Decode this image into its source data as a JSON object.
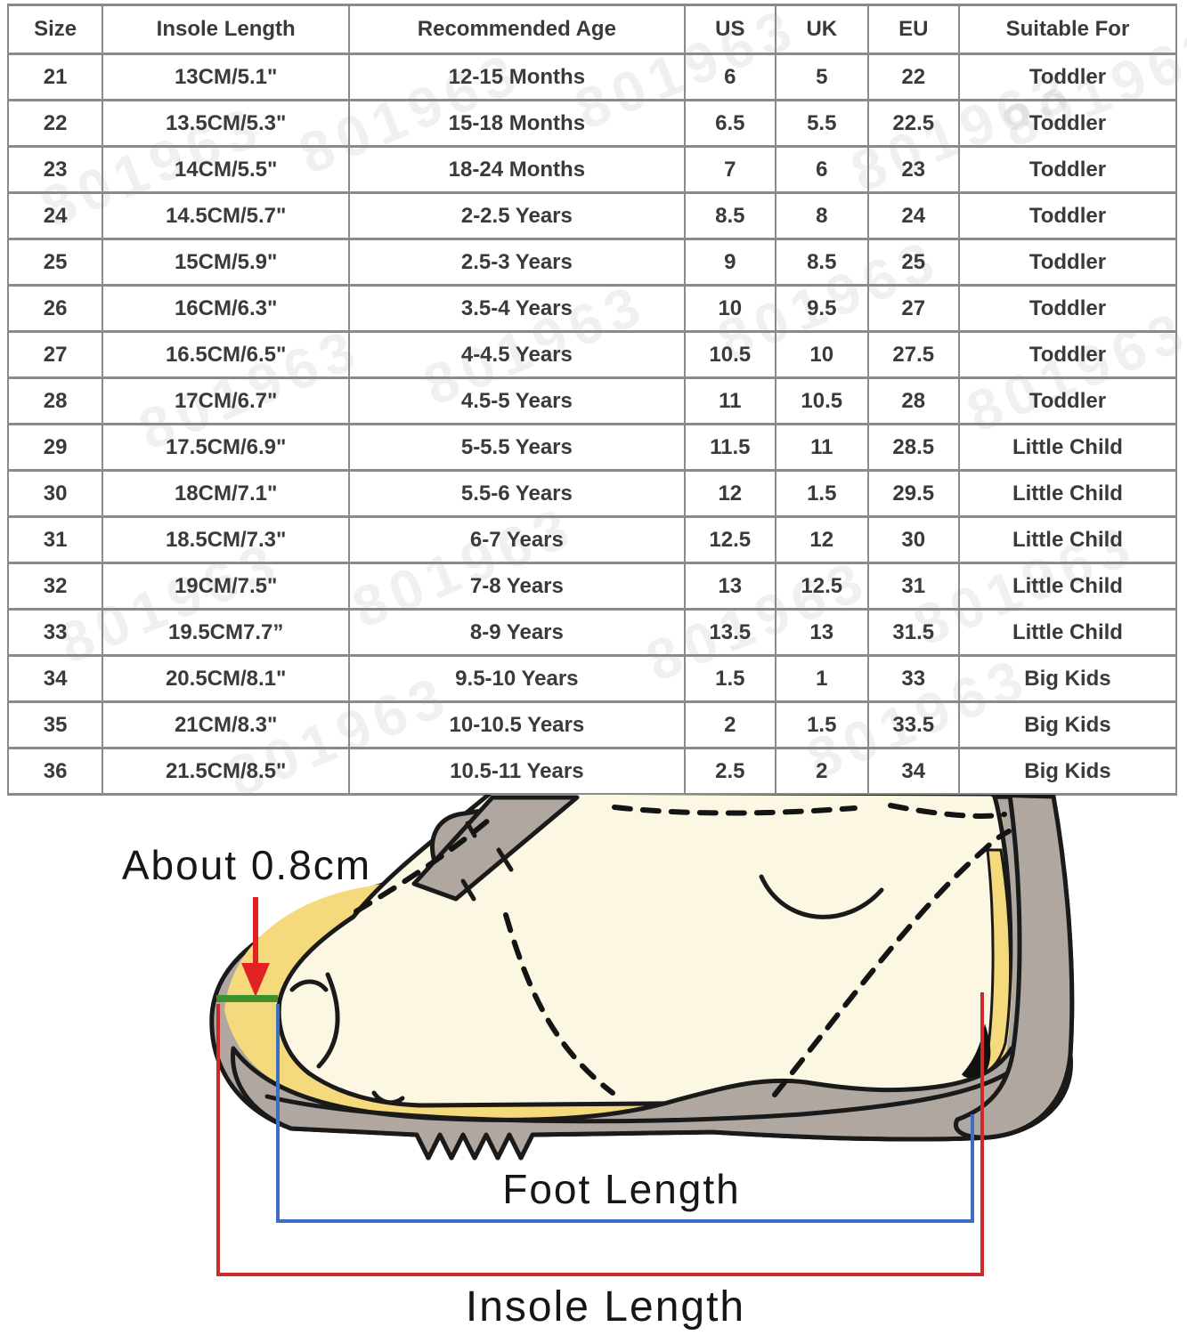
{
  "table": {
    "headers": [
      "Size",
      "Insole Length",
      "Recommended Age",
      "US",
      "UK",
      "EU",
      "Suitable For"
    ],
    "rows": [
      [
        "21",
        "13CM/5.1\"",
        "12-15 Months",
        "6",
        "5",
        "22",
        "Toddler"
      ],
      [
        "22",
        "13.5CM/5.3\"",
        "15-18 Months",
        "6.5",
        "5.5",
        "22.5",
        "Toddler"
      ],
      [
        "23",
        "14CM/5.5\"",
        "18-24 Months",
        "7",
        "6",
        "23",
        "Toddler"
      ],
      [
        "24",
        "14.5CM/5.7\"",
        "2-2.5 Years",
        "8.5",
        "8",
        "24",
        "Toddler"
      ],
      [
        "25",
        "15CM/5.9\"",
        "2.5-3 Years",
        "9",
        "8.5",
        "25",
        "Toddler"
      ],
      [
        "26",
        "16CM/6.3\"",
        "3.5-4 Years",
        "10",
        "9.5",
        "27",
        "Toddler"
      ],
      [
        "27",
        "16.5CM/6.5\"",
        "4-4.5 Years",
        "10.5",
        "10",
        "27.5",
        "Toddler"
      ],
      [
        "28",
        "17CM/6.7\"",
        "4.5-5 Years",
        "11",
        "10.5",
        "28",
        "Toddler"
      ],
      [
        "29",
        "17.5CM/6.9\"",
        "5-5.5 Years",
        "11.5",
        "11",
        "28.5",
        "Little Child"
      ],
      [
        "30",
        "18CM/7.1\"",
        "5.5-6 Years",
        "12",
        "1.5",
        "29.5",
        "Little Child"
      ],
      [
        "31",
        "18.5CM/7.3\"",
        "6-7 Years",
        "12.5",
        "12",
        "30",
        "Little Child"
      ],
      [
        "32",
        "19CM/7.5\"",
        "7-8 Years",
        "13",
        "12.5",
        "31",
        "Little Child"
      ],
      [
        "33",
        "19.5CM7.7”",
        "8-9 Years",
        "13.5",
        "13",
        "31.5",
        "Little Child"
      ],
      [
        "34",
        "20.5CM/8.1\"",
        "9.5-10 Years",
        "1.5",
        "1",
        "33",
        "Big Kids"
      ],
      [
        "35",
        "21CM/8.3\"",
        "10-10.5 Years",
        "2",
        "1.5",
        "33.5",
        "Big Kids"
      ],
      [
        "36",
        "21.5CM/8.5\"",
        "10.5-11 Years",
        "2.5",
        "2",
        "34",
        "Big Kids"
      ]
    ]
  },
  "watermark": {
    "text": "801963"
  },
  "diagram": {
    "gap_label": "About 0.8cm",
    "foot_length_label": "Foot Length",
    "insole_length_label": "Insole Length",
    "colors": {
      "shoe_gray": "#b0a8a0",
      "insole_yellow": "#f5d97d",
      "foot_cream": "#fbf7e2",
      "outline_black": "#1a1a1a",
      "gap_green": "#3f8f2a",
      "arrow_red": "#e02222",
      "insole_bracket_red": "#cc2b2b",
      "foot_bracket_blue": "#3a6fc4",
      "heel_shadow_black": "#111111"
    }
  }
}
